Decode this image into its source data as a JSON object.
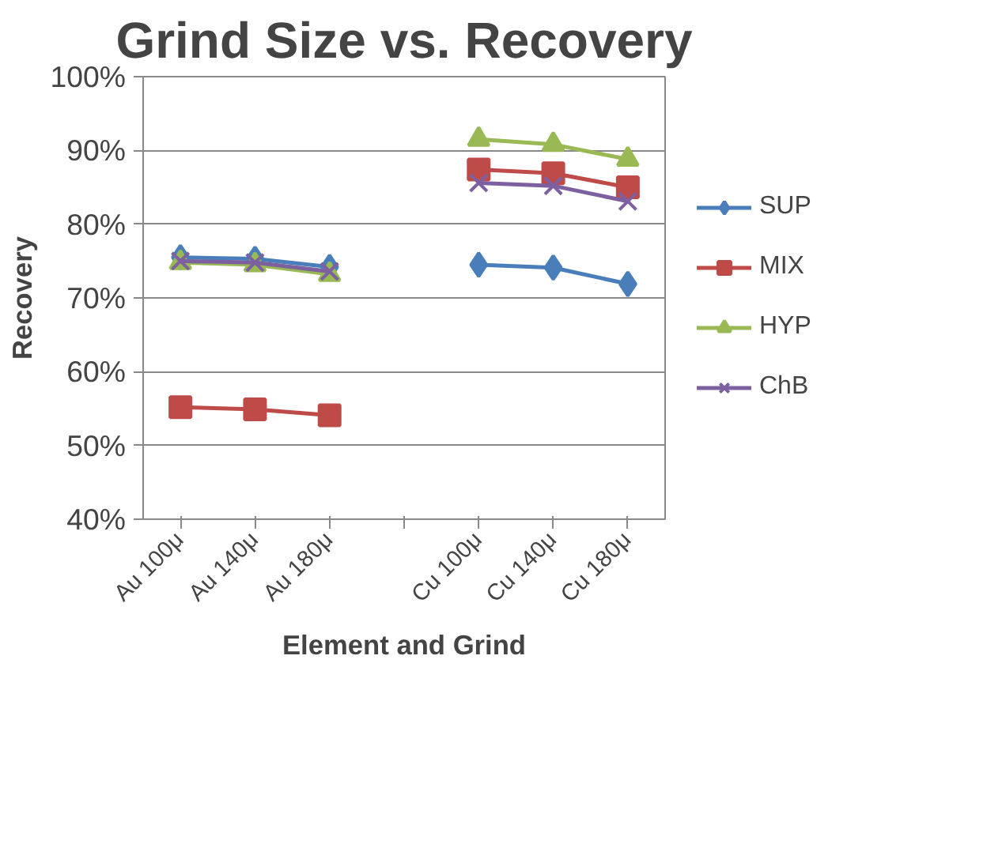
{
  "chart_data": {
    "type": "line",
    "title": "Grind Size vs. Recovery",
    "xlabel": "Element and Grind",
    "ylabel": "Recovery",
    "categories": [
      "Au 100μ",
      "Au 140μ",
      "Au 180μ",
      null,
      "Cu 100μ",
      "Cu 140μ",
      "Cu 180μ"
    ],
    "ylim": [
      40,
      100
    ],
    "yticks": [
      {
        "value": 40,
        "label": "40%"
      },
      {
        "value": 50,
        "label": "50%"
      },
      {
        "value": 60,
        "label": "60%"
      },
      {
        "value": 70,
        "label": "70%"
      },
      {
        "value": 80,
        "label": "80%"
      },
      {
        "value": 90,
        "label": "90%"
      },
      {
        "value": 100,
        "label": "100%"
      }
    ],
    "grid": "y",
    "legend": "right",
    "line_style": "solid",
    "series": [
      {
        "name": "SUP",
        "color": "#4a7ebb",
        "marker": "diamond",
        "values": [
          75.5,
          75.3,
          74.2,
          null,
          74.5,
          74.1,
          71.9
        ]
      },
      {
        "name": "MIX",
        "color": "#be4b48",
        "marker": "square",
        "values": [
          55.2,
          54.9,
          54.1,
          null,
          87.4,
          86.9,
          85.0
        ]
      },
      {
        "name": "HYP",
        "color": "#98b954",
        "marker": "triangle",
        "values": [
          74.8,
          74.5,
          73.2,
          null,
          91.5,
          90.8,
          88.8
        ]
      },
      {
        "name": "ChB",
        "color": "#7d60a0",
        "marker": "cross",
        "values": [
          75.0,
          74.8,
          73.6,
          null,
          85.6,
          85.2,
          83.1
        ]
      }
    ]
  }
}
